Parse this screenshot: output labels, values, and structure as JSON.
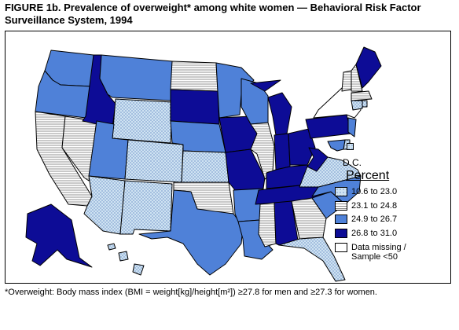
{
  "figure": {
    "title_line1": "FIGURE 1b. Prevalence of overweight* among white women — Behavioral Risk Factor",
    "title_line2": "Surveillance System, 1994"
  },
  "legend": {
    "title": "Percent",
    "items": [
      {
        "label": "10.6 to 23.0",
        "pattern": "light-dots",
        "color": "#cfe3f2"
      },
      {
        "label": "23.1 to 24.8",
        "pattern": "horizontal-hatch",
        "color": "#ffffff"
      },
      {
        "label": "24.9 to 26.7",
        "pattern": "medium-blue",
        "color": "#4f81d8"
      },
      {
        "label": "26.8 to 31.0",
        "pattern": "dark-blue",
        "color": "#0d0c96"
      },
      {
        "label": "Data missing /",
        "label2": "Sample <50",
        "pattern": "white",
        "color": "#ffffff"
      }
    ]
  },
  "dc": {
    "label": "D.C.",
    "category": "light-dots"
  },
  "footnote": {
    "text": "*Overweight: Body mass index (BMI = weight[kg]/height[m²]) ≥27.8 for men and ≥27.3 for women."
  },
  "states": {
    "WA": "medium-blue",
    "OR": "medium-blue",
    "CA": "horizontal-hatch",
    "NV": "horizontal-hatch",
    "ID": "dark-blue",
    "MT": "medium-blue",
    "WY": "light-dots",
    "UT": "medium-blue",
    "AZ": "light-dots",
    "CO": "light-dots",
    "NM": "light-dots",
    "ND": "horizontal-hatch",
    "SD": "dark-blue",
    "NE": "medium-blue",
    "KS": "light-dots",
    "OK": "horizontal-hatch",
    "TX": "medium-blue",
    "MN": "medium-blue",
    "IA": "dark-blue",
    "MO": "dark-blue",
    "AR": "medium-blue",
    "LA": "medium-blue",
    "WI": "medium-blue",
    "IL": "horizontal-hatch",
    "MI": "dark-blue",
    "IN": "dark-blue",
    "OH": "dark-blue",
    "KY": "dark-blue",
    "TN": "dark-blue",
    "MS": "horizontal-hatch",
    "AL": "dark-blue",
    "GA": "horizontal-hatch",
    "FL": "light-dots",
    "SC": "medium-blue",
    "NC": "medium-blue",
    "VA": "light-dots",
    "WV": "dark-blue",
    "PA": "dark-blue",
    "NY": "white",
    "VT": "horizontal-hatch",
    "NH": "horizontal-hatch",
    "ME": "dark-blue",
    "MA": "horizontal-hatch",
    "CT": "light-dots",
    "RI": "light-dots",
    "NJ": "medium-blue",
    "DE": "light-dots",
    "MD": "medium-blue",
    "AK": "dark-blue",
    "HI": "light-dots"
  }
}
